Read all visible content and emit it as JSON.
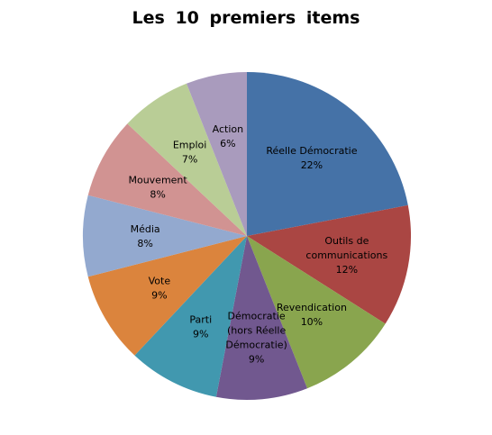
{
  "chart_data": {
    "type": "pie",
    "title": "Les  10  premiers  items",
    "slices": [
      {
        "name": "Réelle Démocratie",
        "label_lines": [
          "Réelle Démocratie"
        ],
        "value": 22,
        "percent_label": "22%",
        "color": "#4572A7"
      },
      {
        "name": "Outils de communications",
        "label_lines": [
          "Outils de",
          "communications"
        ],
        "value": 12,
        "percent_label": "12%",
        "color": "#AA4643"
      },
      {
        "name": "Revendication",
        "label_lines": [
          "Revendication"
        ],
        "value": 10,
        "percent_label": "10%",
        "color": "#89A54E"
      },
      {
        "name": "Démocratie (hors Réelle Démocratie)",
        "label_lines": [
          "Démocratie",
          "(hors Réelle",
          "Démocratie)"
        ],
        "value": 9,
        "percent_label": "9%",
        "color": "#71588F"
      },
      {
        "name": "Parti",
        "label_lines": [
          "Parti"
        ],
        "value": 9,
        "percent_label": "9%",
        "color": "#4198AF"
      },
      {
        "name": "Vote",
        "label_lines": [
          "Vote"
        ],
        "value": 9,
        "percent_label": "9%",
        "color": "#DB843D"
      },
      {
        "name": "Média",
        "label_lines": [
          "Média"
        ],
        "value": 8,
        "percent_label": "8%",
        "color": "#93A9CF"
      },
      {
        "name": "Mouvement",
        "label_lines": [
          "Mouvement"
        ],
        "value": 8,
        "percent_label": "8%",
        "color": "#D19392"
      },
      {
        "name": "Emploi",
        "label_lines": [
          "Emploi"
        ],
        "value": 7,
        "percent_label": "7%",
        "color": "#B9CD96"
      },
      {
        "name": "Action",
        "label_lines": [
          "Action"
        ],
        "value": 6,
        "percent_label": "6%",
        "color": "#A99BBD"
      }
    ]
  }
}
